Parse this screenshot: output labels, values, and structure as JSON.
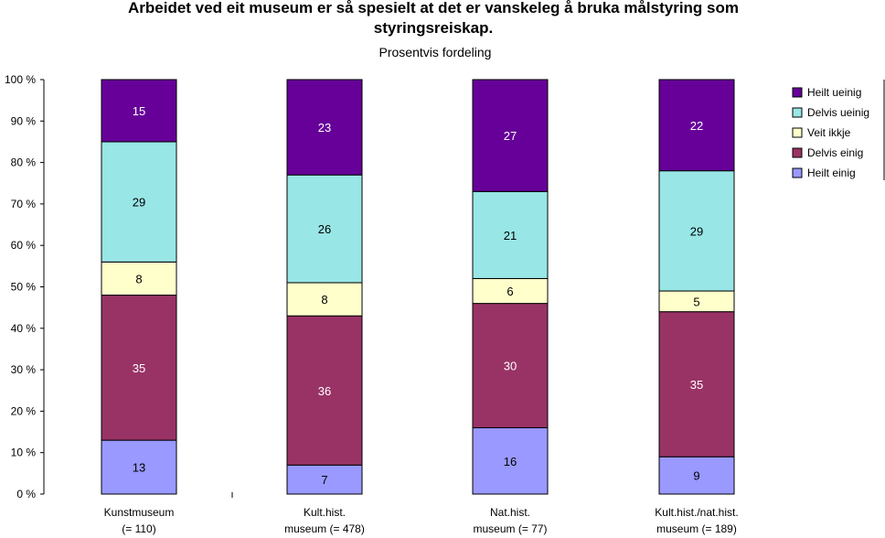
{
  "chart_data": {
    "type": "bar",
    "stacked": true,
    "title": "Arbeidet ved eit museum er så spesielt at det er vanskeleg å bruka målstyring som styringsreiskap.",
    "title_lines": [
      "Arbeidet ved eit museum er så spesielt at det er vanskeleg å bruka målstyring som",
      "styringsreiskap."
    ],
    "subtitle": "Prosentvis fordeling",
    "xlabel": "",
    "ylabel": "",
    "ylim": [
      0,
      100
    ],
    "y_ticks": [
      "0 %",
      "10 %",
      "20 %",
      "30 %",
      "40 %",
      "50 %",
      "60 %",
      "70 %",
      "80 %",
      "90 %",
      "100 %"
    ],
    "categories": [
      [
        "Kunstmuseum",
        "(= 110)"
      ],
      [
        "Kult.hist.",
        "museum (= 478)"
      ],
      [
        "Nat.hist.",
        "museum (= 77)"
      ],
      [
        "Kult.hist./nat.hist.",
        "museum (= 189)"
      ]
    ],
    "series": [
      {
        "name": "Heilt einig",
        "color": "#9999ff",
        "text_color": "#000000",
        "values": [
          13,
          7,
          16,
          9
        ]
      },
      {
        "name": "Delvis einig",
        "color": "#993366",
        "text_color": "#ffffff",
        "values": [
          35,
          36,
          30,
          35
        ]
      },
      {
        "name": "Veit ikkje",
        "color": "#ffffcc",
        "text_color": "#000000",
        "values": [
          8,
          8,
          6,
          5
        ]
      },
      {
        "name": "Delvis ueinig",
        "color": "#99e6e6",
        "text_color": "#000000",
        "values": [
          29,
          26,
          21,
          29
        ]
      },
      {
        "name": "Heilt ueinig",
        "color": "#660099",
        "text_color": "#ffffff",
        "values": [
          15,
          23,
          27,
          22
        ]
      }
    ],
    "legend_order": [
      "Heilt ueinig",
      "Delvis ueinig",
      "Veit ikkje",
      "Delvis einig",
      "Heilt einig"
    ],
    "legend_position": "right",
    "grid": false
  }
}
